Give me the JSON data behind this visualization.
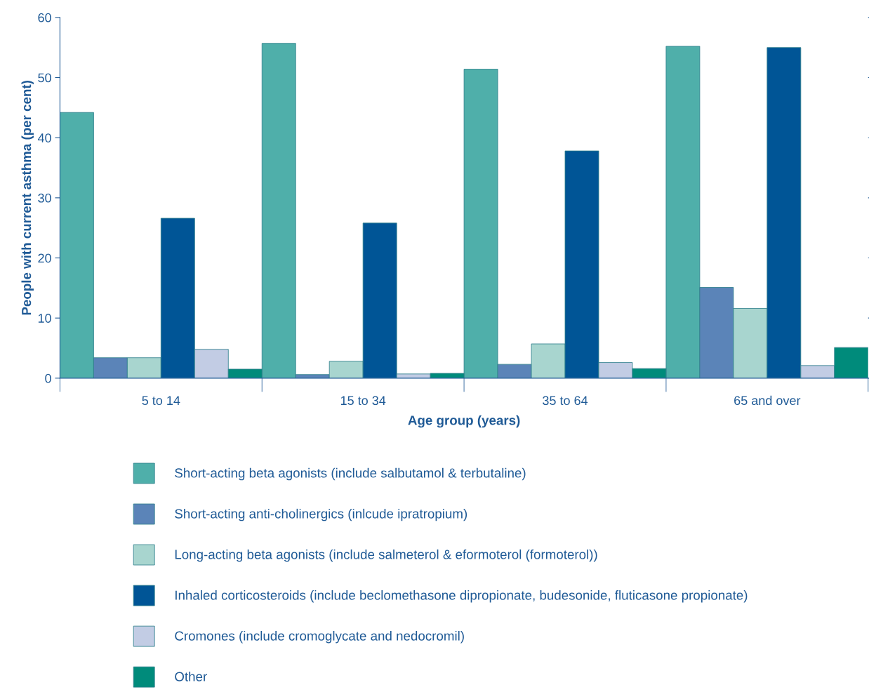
{
  "chart_data": {
    "type": "bar",
    "xlabel": "Age group (years)",
    "ylabel": "People with current asthma (per cent)",
    "categories": [
      "5 to 14",
      "15 to 34",
      "35 to 64",
      "65 and over"
    ],
    "series": [
      {
        "name": "Short-acting beta agonists (include salbutamol & terbutaline)",
        "color": "#4fafaa",
        "values": [
          44.2,
          55.7,
          51.4,
          55.2
        ]
      },
      {
        "name": "Short-acting anti-cholinergics (inlcude ipratropium)",
        "color": "#5b84b8",
        "values": [
          3.4,
          0.6,
          2.3,
          15.1
        ]
      },
      {
        "name": "Long-acting beta agonists (include salmeterol & eformoterol (formoterol))",
        "color": "#a8d5cf",
        "values": [
          3.4,
          2.8,
          5.7,
          11.6
        ]
      },
      {
        "name": "Inhaled corticosteroids (include beclomethasone dipropionate, budesonide, fluticasone propionate)",
        "color": "#005596",
        "values": [
          26.6,
          25.8,
          37.8,
          55.0
        ]
      },
      {
        "name": "Cromones (include cromoglycate and nedocromil)",
        "color": "#c2cce4",
        "values": [
          4.8,
          0.7,
          2.6,
          2.1
        ]
      },
      {
        "name": "Other",
        "color": "#008b7b",
        "values": [
          1.5,
          0.8,
          1.6,
          5.1
        ]
      }
    ],
    "ylim": [
      0,
      60
    ],
    "yticks": [
      0,
      10,
      20,
      30,
      40,
      50,
      60
    ],
    "grid": false,
    "legend": "bottom"
  }
}
